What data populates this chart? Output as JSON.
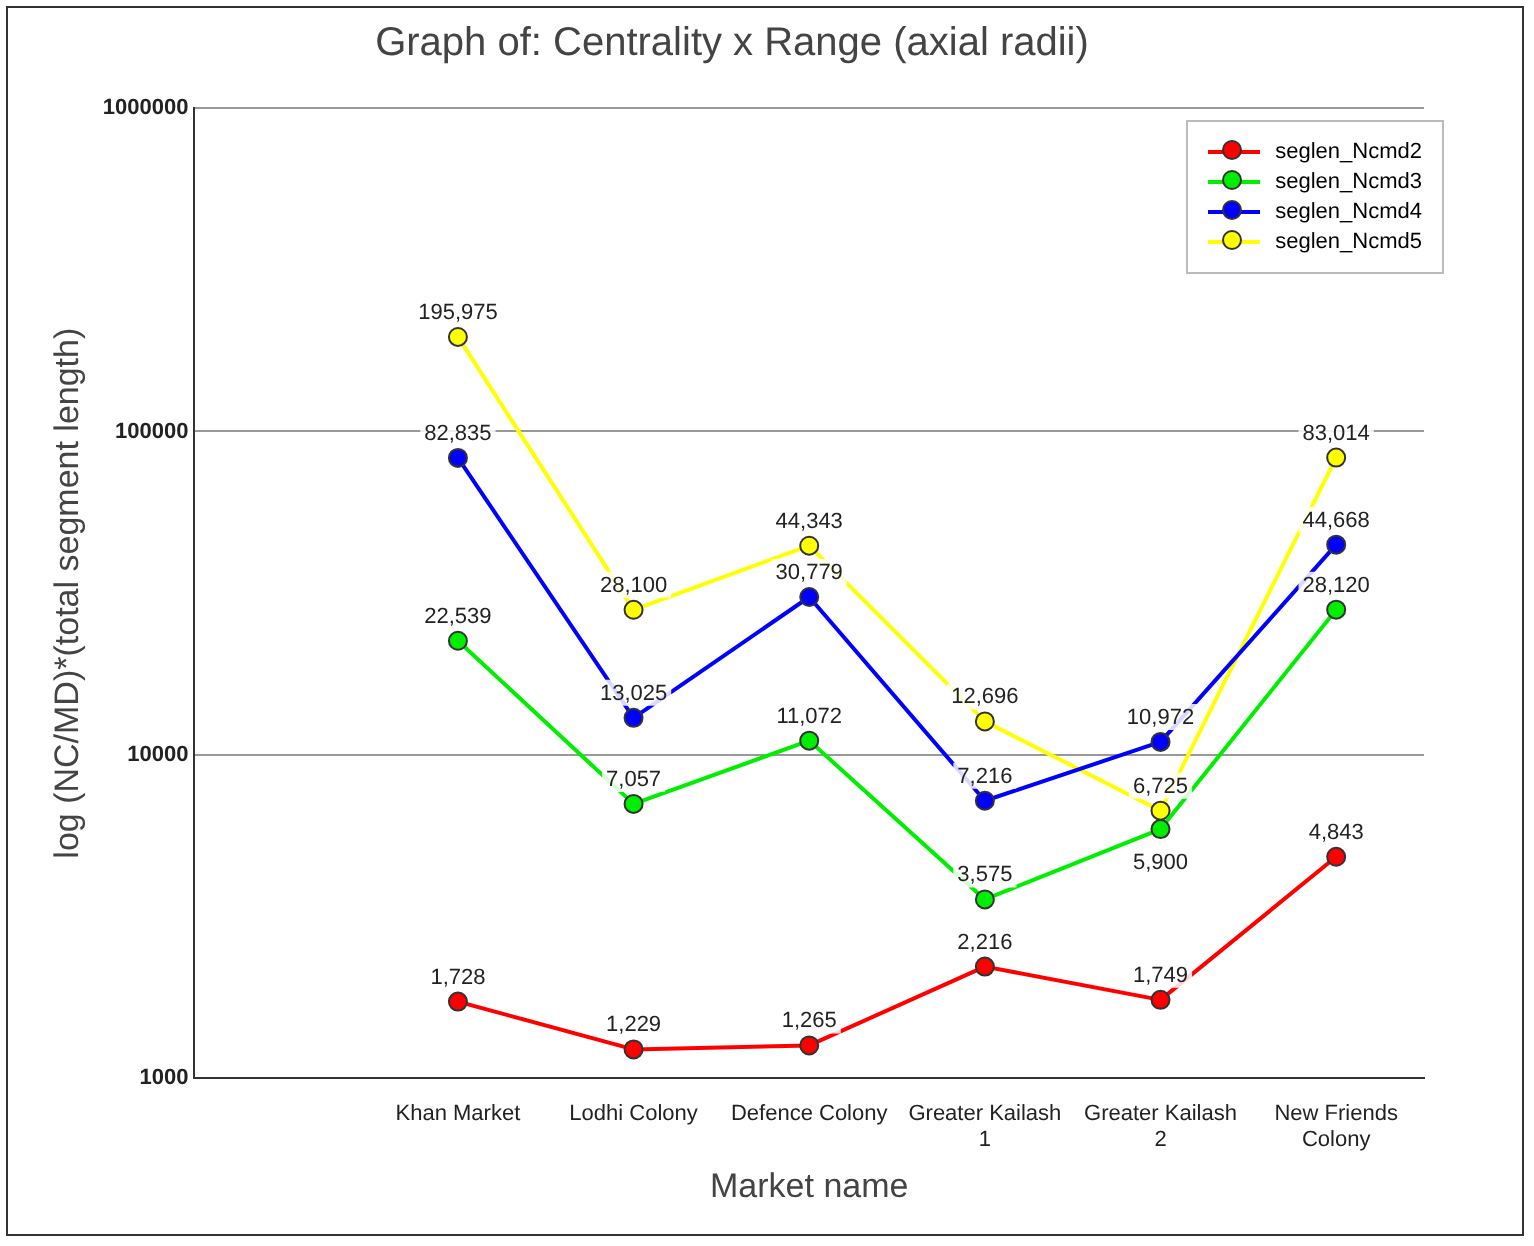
{
  "chart_data": {
    "type": "line",
    "title": "Graph of: Centrality x Range (axial radii)",
    "xlabel": "Market name",
    "ylabel": "log (NC/MD)*(total segment length)",
    "categories": [
      null,
      "Khan Market",
      "Lodhi Colony",
      "Defence Colony",
      "Greater Kailash 1",
      "Greater Kailash 2",
      "New Friends Colony"
    ],
    "series": [
      {
        "name": "seglen_Ncmd2",
        "color": "#ff0000",
        "values": [
          null,
          1728,
          1229,
          1265,
          2216,
          1749,
          4843
        ],
        "value_labels": [
          null,
          "1,728",
          "1,229",
          "1,265",
          "2,216",
          "1,749",
          "4,843"
        ]
      },
      {
        "name": "seglen_Ncmd3",
        "color": "#00ee00",
        "values": [
          null,
          22539,
          7057,
          11072,
          3575,
          5900,
          28120
        ],
        "value_labels": [
          null,
          "22,539",
          "7,057",
          "11,072",
          "3,575",
          "5,900",
          "28,120"
        ]
      },
      {
        "name": "seglen_Ncmd4",
        "color": "#0000ff",
        "values": [
          null,
          82835,
          13025,
          30779,
          7216,
          10972,
          44668
        ],
        "value_labels": [
          null,
          "82,835",
          "13,025",
          "30,779",
          "7,216",
          "10,972",
          "44,668"
        ]
      },
      {
        "name": "seglen_Ncmd5",
        "color": "#ffff00",
        "values": [
          null,
          195975,
          28100,
          44343,
          12696,
          6725,
          83014
        ],
        "value_labels": [
          null,
          "195,975",
          "28,100",
          "44,343",
          "12,696",
          "6,725",
          "83,014"
        ]
      }
    ],
    "log": true,
    "ylim": [
      1000,
      1000000
    ],
    "yticks": [
      1000,
      10000,
      100000,
      1000000
    ],
    "grid": "y",
    "legend": "top right",
    "marker": "circle",
    "line_style": "solid"
  }
}
